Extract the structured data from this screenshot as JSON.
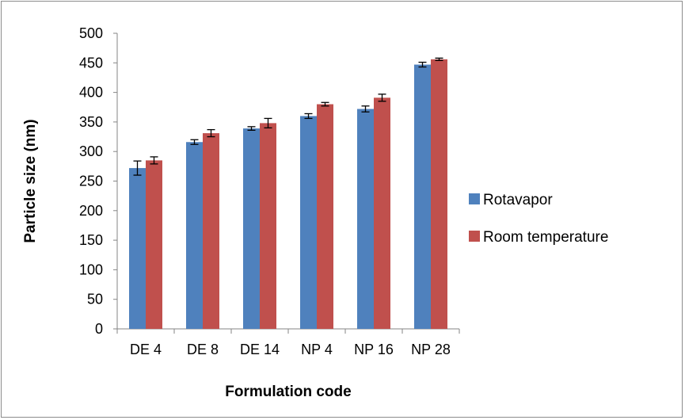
{
  "chart_data": {
    "type": "bar",
    "categories": [
      "DE 4",
      "DE 8",
      "DE 14",
      "NP 4",
      "NP 16",
      "NP 28"
    ],
    "series": [
      {
        "name": "Rotavapor",
        "color": "#4f81bd",
        "values": [
          272,
          316,
          339,
          360,
          372,
          447
        ],
        "errors": [
          12,
          4,
          3,
          4,
          5,
          4
        ]
      },
      {
        "name": "Room temperature",
        "color": "#c0504d",
        "values": [
          285,
          331,
          348,
          380,
          391,
          456
        ],
        "errors": [
          6,
          6,
          8,
          3,
          6,
          2
        ]
      }
    ],
    "xlabel": "Formulation code",
    "ylabel": "Particle size (nm)",
    "ylim": [
      0,
      500
    ],
    "yticks": [
      0,
      50,
      100,
      150,
      200,
      250,
      300,
      350,
      400,
      450,
      500
    ],
    "grid": false,
    "legend_position": "right"
  }
}
